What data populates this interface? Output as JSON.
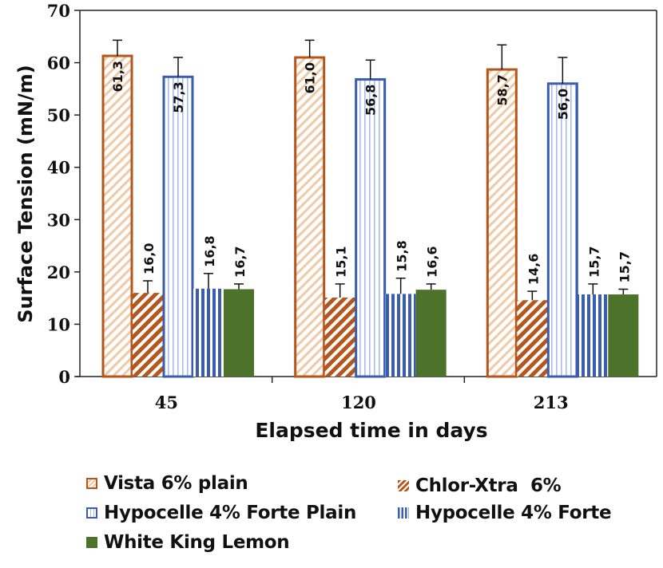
{
  "chart_data": {
    "type": "bar",
    "title": "",
    "xlabel": "Elapsed time in days",
    "ylabel": "Surface Tension (mN/m)",
    "ylim": [
      0,
      70
    ],
    "yticks": [
      0,
      10,
      20,
      30,
      40,
      50,
      60,
      70
    ],
    "categories": [
      "45",
      "120",
      "213"
    ],
    "grid": false,
    "legend_position": "bottom",
    "series": [
      {
        "name": "Vista 6% plain",
        "values": [
          61.3,
          61.0,
          58.7
        ],
        "labels": [
          "61,3",
          "61,0",
          "58,7"
        ],
        "errors": [
          3.0,
          3.3,
          4.7
        ],
        "color": "#b5561c",
        "pattern": "light-diagonal-outline",
        "label_inside": true
      },
      {
        "name": "Chlor-Xtra  6%",
        "values": [
          16.0,
          15.1,
          14.6
        ],
        "labels": [
          "16,0",
          "15,1",
          "14,6"
        ],
        "errors": [
          2.3,
          2.6,
          1.7
        ],
        "color": "#b5561c",
        "pattern": "dark-diagonal",
        "label_inside": false
      },
      {
        "name": "Hypocelle 4% Forte Plain",
        "values": [
          57.3,
          56.8,
          56.0
        ],
        "labels": [
          "57,3",
          "56,8",
          "56,0"
        ],
        "errors": [
          3.7,
          3.7,
          5.0
        ],
        "color": "#3a5dae",
        "pattern": "light-vertical-outline",
        "label_inside": true
      },
      {
        "name": "Hypocelle 4% Forte",
        "values": [
          16.8,
          15.8,
          15.7
        ],
        "labels": [
          "16,8",
          "15,8",
          "15,7"
        ],
        "errors": [
          2.9,
          3.0,
          2.0
        ],
        "color": "#3a5dae",
        "pattern": "dark-vertical",
        "label_inside": false
      },
      {
        "name": "White King Lemon",
        "values": [
          16.7,
          16.6,
          15.7
        ],
        "labels": [
          "16,7",
          "16,6",
          "15,7"
        ],
        "errors": [
          1.0,
          1.1,
          1.0
        ],
        "color": "#4d7229",
        "pattern": "solid",
        "label_inside": false
      }
    ]
  },
  "legend": {
    "items": [
      {
        "label": "Vista 6% plain",
        "series": 0
      },
      {
        "label": "Chlor-Xtra  6%",
        "series": 1
      },
      {
        "label": "Hypocelle 4% Forte Plain",
        "series": 2
      },
      {
        "label": "Hypocelle 4% Forte",
        "series": 3
      },
      {
        "label": "White King Lemon",
        "series": 4
      }
    ]
  }
}
